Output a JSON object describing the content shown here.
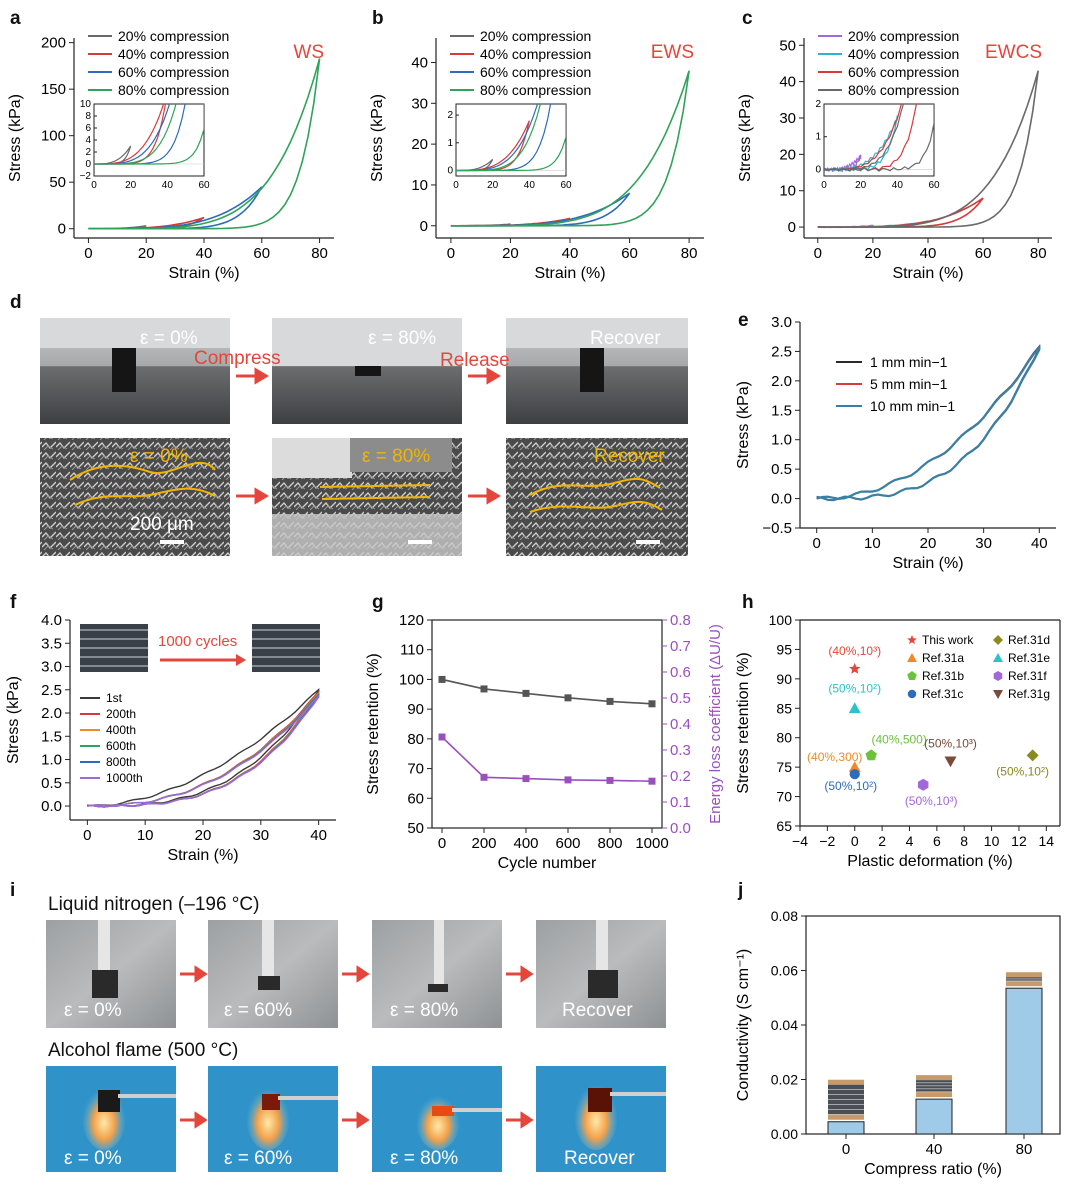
{
  "panel_labels": {
    "a": "a",
    "b": "b",
    "c": "c",
    "d": "d",
    "e": "e",
    "f": "f",
    "g": "g",
    "h": "h",
    "i": "i",
    "j": "j"
  },
  "colors": {
    "black": "#3a3a3a",
    "red": "#d63a3a",
    "blue": "#2e6bbd",
    "green": "#2fa35a",
    "cyan": "#2bb4d1",
    "purple": "#a268d8",
    "teal": "#3a7fa4",
    "orange": "#ef8a2c",
    "gray_line": "#6a6a6a",
    "lightblue_bar": "#9fcbe8",
    "accent_red": "#e5463c"
  },
  "legend_compression": [
    "20% compression",
    "40% compression",
    "60% compression",
    "80% compression"
  ],
  "panel_d": {
    "top": [
      "ε = 0%",
      "ε = 80%",
      "Recover"
    ],
    "arrows": [
      "Compress",
      "Release"
    ],
    "bottom": [
      "ε = 0%",
      "ε = 80%",
      "Recover"
    ],
    "scale_bar": "200 μm"
  },
  "panel_i": {
    "row1_title": "Liquid nitrogen (–196 °C)",
    "row1_labels": [
      "ε = 0%",
      "ε = 60%",
      "ε = 80%",
      "Recover"
    ],
    "row2_title": "Alcohol flame (500 °C)",
    "row2_labels": [
      "ε = 0%",
      "ε = 60%",
      "ε = 80%",
      "Recover"
    ]
  },
  "panel_f": {
    "inset_text": "1000 cycles",
    "legend": [
      "1st",
      "200th",
      "400th",
      "600th",
      "800th",
      "1000th"
    ]
  },
  "chart_data": [
    {
      "id": "a",
      "type": "line",
      "annotation": "WS",
      "xlabel": "Strain (%)",
      "ylabel": "Stress (kPa)",
      "xlim": [
        -5,
        85
      ],
      "ylim": [
        -10,
        205
      ],
      "xticks": [
        0,
        20,
        40,
        60,
        80
      ],
      "yticks": [
        0,
        50,
        100,
        150,
        200
      ],
      "peaks": [
        {
          "strain": 20,
          "stress": 3
        },
        {
          "strain": 40,
          "stress": 12
        },
        {
          "strain": 60,
          "stress": 45
        },
        {
          "strain": 80,
          "stress": 183
        }
      ],
      "inset": {
        "xlim": [
          0,
          60
        ],
        "ylim": [
          -2,
          10
        ],
        "xticks": [
          0,
          20,
          40,
          60
        ],
        "yticks": [
          -2,
          0,
          2,
          4,
          6,
          8,
          10
        ]
      }
    },
    {
      "id": "b",
      "type": "line",
      "annotation": "EWS",
      "xlabel": "Strain (%)",
      "ylabel": "Stress (kPa)",
      "xlim": [
        -5,
        85
      ],
      "ylim": [
        -3,
        46
      ],
      "xticks": [
        0,
        20,
        40,
        60,
        80
      ],
      "yticks": [
        0,
        10,
        20,
        30,
        40
      ],
      "peaks": [
        {
          "strain": 20,
          "stress": 0.4
        },
        {
          "strain": 40,
          "stress": 1.8
        },
        {
          "strain": 60,
          "stress": 8
        },
        {
          "strain": 80,
          "stress": 38
        }
      ],
      "inset": {
        "xlim": [
          0,
          60
        ],
        "ylim": [
          -0.2,
          2.4
        ],
        "xticks": [
          0,
          20,
          40,
          60
        ],
        "yticks": [
          0,
          1,
          2
        ]
      }
    },
    {
      "id": "c",
      "type": "line",
      "annotation": "EWCS",
      "xlabel": "Strain (%)",
      "ylabel": "Stress (kPa)",
      "xlim": [
        -5,
        85
      ],
      "ylim": [
        -3,
        52
      ],
      "xticks": [
        0,
        20,
        40,
        60,
        80
      ],
      "yticks": [
        0,
        10,
        20,
        30,
        40,
        50
      ],
      "peaks": [
        {
          "strain": 20,
          "stress": 0.4
        },
        {
          "strain": 40,
          "stress": 1.6
        },
        {
          "strain": 60,
          "stress": 8
        },
        {
          "strain": 80,
          "stress": 43
        }
      ],
      "inset": {
        "xlim": [
          0,
          60
        ],
        "ylim": [
          -0.2,
          2.0
        ],
        "xticks": [
          0,
          20,
          40,
          60
        ],
        "yticks": [
          0,
          1,
          2
        ]
      }
    },
    {
      "id": "e",
      "type": "line",
      "xlabel": "Strain (%)",
      "ylabel": "Stress (kPa)",
      "xlim": [
        -3,
        43
      ],
      "ylim": [
        -0.5,
        3.0
      ],
      "xticks": [
        0,
        10,
        20,
        30,
        40
      ],
      "yticks": [
        -0.5,
        0.0,
        0.5,
        1.0,
        1.5,
        2.0,
        2.5,
        3.0
      ],
      "series": [
        {
          "name": "1 mm min−1",
          "peak": 2.58
        },
        {
          "name": "5 mm min−1",
          "peak": 2.57
        },
        {
          "name": "10 mm min−1",
          "peak": 2.56
        }
      ]
    },
    {
      "id": "f",
      "type": "line",
      "xlabel": "Strain (%)",
      "ylabel": "Stress (kPa)",
      "xlim": [
        -3,
        43
      ],
      "ylim": [
        -0.3,
        4.0
      ],
      "xticks": [
        0,
        10,
        20,
        30,
        40
      ],
      "yticks": [
        0.0,
        0.5,
        1.0,
        1.5,
        2.0,
        2.5,
        3.0,
        3.5,
        4.0
      ],
      "series": [
        {
          "name": "1st",
          "peak": 2.5
        },
        {
          "name": "200th",
          "peak": 2.45
        },
        {
          "name": "400th",
          "peak": 2.42
        },
        {
          "name": "600th",
          "peak": 2.4
        },
        {
          "name": "800th",
          "peak": 2.38
        },
        {
          "name": "1000th",
          "peak": 2.36
        }
      ]
    },
    {
      "id": "g",
      "type": "line",
      "xlabel": "Cycle number",
      "ylabel": "Stress retention (%)",
      "y2label": "Energy loss coefficient (ΔU/U)",
      "x": [
        0,
        200,
        400,
        600,
        800,
        1000
      ],
      "xticks": [
        0,
        200,
        400,
        600,
        800,
        1000
      ],
      "ylim": [
        50,
        120
      ],
      "yticks": [
        50,
        60,
        70,
        80,
        90,
        100,
        110,
        120
      ],
      "y2lim": [
        0,
        0.8
      ],
      "y2ticks": [
        0.0,
        0.1,
        0.2,
        0.3,
        0.4,
        0.5,
        0.6,
        0.7,
        0.8
      ],
      "series": [
        {
          "name": "Stress retention",
          "axis": "left",
          "values": [
            100,
            96.8,
            95.3,
            93.8,
            92.6,
            91.8
          ]
        },
        {
          "name": "Energy loss coefficient",
          "axis": "right",
          "values": [
            0.35,
            0.195,
            0.19,
            0.185,
            0.183,
            0.18
          ]
        }
      ]
    },
    {
      "id": "h",
      "type": "scatter",
      "xlabel": "Plastic deformation (%)",
      "ylabel": "Stress retention (%)",
      "xlim": [
        -4,
        15
      ],
      "ylim": [
        65,
        100
      ],
      "xticks": [
        -4,
        -2,
        0,
        2,
        4,
        6,
        8,
        10,
        12,
        14
      ],
      "yticks": [
        65,
        70,
        75,
        80,
        85,
        90,
        95,
        100
      ],
      "points": [
        {
          "name": "This work",
          "x": 0,
          "y": 91.7,
          "label": "(40%,10³)",
          "marker": "star",
          "color": "#e5463c"
        },
        {
          "name": "Ref.31a",
          "x": 0,
          "y": 75,
          "label": "(40%,300)",
          "marker": "triangle",
          "color": "#ef8a2c"
        },
        {
          "name": "Ref.31b",
          "x": 1.2,
          "y": 77,
          "label": "(40%,500)",
          "marker": "pentagon",
          "color": "#6cc23a"
        },
        {
          "name": "Ref.31c",
          "x": 0,
          "y": 73.8,
          "label": "(50%,10²)",
          "marker": "circle",
          "color": "#2e6bbd"
        },
        {
          "name": "Ref.31d",
          "x": 13,
          "y": 77,
          "label": "(50%,10²)",
          "marker": "diamond",
          "color": "#8a8a1e"
        },
        {
          "name": "Ref.31e",
          "x": 0,
          "y": 85,
          "label": "(50%,10²)",
          "marker": "triangle",
          "color": "#2bc2c9"
        },
        {
          "name": "Ref.31f",
          "x": 5,
          "y": 72,
          "label": "(50%,10³)",
          "marker": "hexagon",
          "color": "#a268d8"
        },
        {
          "name": "Ref.31g",
          "x": 7,
          "y": 76,
          "label": "(50%,10³)",
          "marker": "tridown",
          "color": "#7a4a3a"
        }
      ]
    },
    {
      "id": "j",
      "type": "bar",
      "xlabel": "Compress ratio (%)",
      "ylabel": "Conductivity (S cm⁻¹)",
      "categories": [
        "0",
        "40",
        "80"
      ],
      "values": [
        0.0045,
        0.0128,
        0.0535
      ],
      "ylim": [
        0,
        0.08
      ],
      "yticks": [
        0.0,
        0.02,
        0.04,
        0.06,
        0.08
      ]
    }
  ]
}
